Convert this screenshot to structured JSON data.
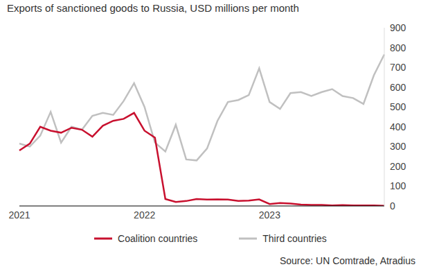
{
  "chart_data": {
    "type": "line",
    "title": "Exports of sanctioned goods to Russia, USD millions per month",
    "source": "Source: UN Comtrade, Atradius",
    "categories": [
      "2021",
      null,
      null,
      null,
      null,
      null,
      null,
      null,
      null,
      null,
      null,
      null,
      "2022",
      null,
      null,
      null,
      null,
      null,
      null,
      null,
      null,
      null,
      null,
      null,
      "2023",
      null,
      null,
      null,
      null,
      null,
      null,
      null,
      null,
      null,
      null,
      null
    ],
    "series": [
      {
        "name": "Coalition countries",
        "color": "#c8102e",
        "values": [
          280,
          315,
          400,
          380,
          370,
          395,
          385,
          350,
          405,
          430,
          440,
          470,
          380,
          345,
          35,
          20,
          25,
          35,
          32,
          33,
          32,
          25,
          27,
          33,
          10,
          15,
          12,
          7,
          5,
          5,
          3,
          4,
          3,
          3,
          3,
          1
        ]
      },
      {
        "name": "Third countries",
        "color": "#c0c0c0",
        "values": [
          315,
          300,
          355,
          475,
          320,
          400,
          385,
          455,
          470,
          460,
          530,
          620,
          500,
          320,
          275,
          410,
          235,
          230,
          290,
          430,
          525,
          535,
          560,
          695,
          525,
          490,
          570,
          575,
          555,
          575,
          590,
          555,
          545,
          515,
          660,
          765
        ]
      }
    ],
    "ylim": [
      0,
      900
    ],
    "yticks": [
      0,
      100,
      200,
      300,
      400,
      500,
      600,
      700,
      800,
      900
    ],
    "grid": false,
    "legend": "bottom"
  }
}
